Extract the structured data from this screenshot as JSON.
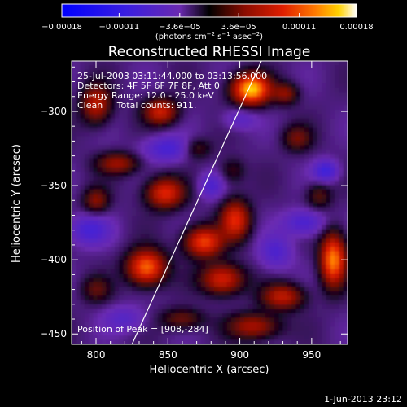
{
  "chart_data": {
    "type": "heatmap",
    "title": "Reconstructed RHESSI Image",
    "xlabel": "Heliocentric X (arcsec)",
    "ylabel": "Heliocentric Y (arcsec)",
    "xlim": [
      783,
      975
    ],
    "ylim": [
      -457,
      -266
    ],
    "x_ticks": [
      800,
      850,
      900,
      950
    ],
    "x_tick_labels": [
      "800",
      "850",
      "900",
      "950"
    ],
    "y_ticks": [
      -300,
      -350,
      -400,
      -450
    ],
    "y_tick_labels": [
      "−300",
      "−350",
      "−400",
      "−450"
    ],
    "colorbar": {
      "range": [
        -0.00018,
        0.00018
      ],
      "tick_values": [
        -0.00018,
        -0.00011,
        -3.6e-05,
        3.6e-05,
        0.00011,
        0.00018
      ],
      "tick_labels": [
        "−0.00018",
        "−0.00011",
        "−3.6e−05",
        "3.6e−05",
        "0.00011",
        "0.00018"
      ],
      "units_prefix": "(photons cm",
      "units_exp1": "−2",
      "units_mid": " s",
      "units_exp2": "−1",
      "units_mid2": " asec",
      "units_exp3": "−2",
      "units_suffix": ")"
    },
    "annotations": {
      "line1": "25-Jul-2003 03:11:44.000 to 03:13:56.000",
      "line2": "Detectors: 4F 5F 6F 7F 8F, Att 0",
      "line3": "Energy Range: 12.0 - 25.0 keV",
      "line4": "Clean     Total counts: 911.",
      "peak": "Position of Peak = [908,-284]"
    },
    "peak": [
      908,
      -284
    ],
    "limb_line": [
      [
        825,
        -457
      ],
      [
        915,
        -266
      ]
    ],
    "sources": [
      {
        "x": 908,
        "y": -285,
        "sx": 9,
        "sy": 7,
        "amp": 1.0
      },
      {
        "x": 845,
        "y": -300,
        "sx": 8,
        "sy": 6,
        "amp": 0.55
      },
      {
        "x": 800,
        "y": -295,
        "sx": 7,
        "sy": 9,
        "amp": 0.5
      },
      {
        "x": 932,
        "y": -288,
        "sx": 6,
        "sy": 5,
        "amp": 0.35
      },
      {
        "x": 940,
        "y": -318,
        "sx": 7,
        "sy": 6,
        "amp": 0.3
      },
      {
        "x": 815,
        "y": -335,
        "sx": 10,
        "sy": 5,
        "amp": 0.4
      },
      {
        "x": 848,
        "y": -355,
        "sx": 9,
        "sy": 7,
        "amp": 0.62
      },
      {
        "x": 897,
        "y": -373,
        "sx": 7,
        "sy": 9,
        "amp": 0.62
      },
      {
        "x": 875,
        "y": -388,
        "sx": 9,
        "sy": 7,
        "amp": 0.7
      },
      {
        "x": 835,
        "y": -405,
        "sx": 9,
        "sy": 8,
        "amp": 0.8
      },
      {
        "x": 888,
        "y": -413,
        "sx": 10,
        "sy": 7,
        "amp": 0.6
      },
      {
        "x": 965,
        "y": -400,
        "sx": 6,
        "sy": 12,
        "amp": 0.85
      },
      {
        "x": 930,
        "y": -425,
        "sx": 10,
        "sy": 6,
        "amp": 0.5
      },
      {
        "x": 910,
        "y": -445,
        "sx": 12,
        "sy": 6,
        "amp": 0.45
      },
      {
        "x": 800,
        "y": -360,
        "sx": 6,
        "sy": 6,
        "amp": 0.35
      },
      {
        "x": 955,
        "y": -357,
        "sx": 6,
        "sy": 6,
        "amp": 0.25
      },
      {
        "x": 870,
        "y": -325,
        "sx": 7,
        "sy": 5,
        "amp": 0.25
      },
      {
        "x": 860,
        "y": -440,
        "sx": 10,
        "sy": 5,
        "amp": 0.3
      },
      {
        "x": 895,
        "y": -340,
        "sx": 6,
        "sy": 6,
        "amp": 0.2
      },
      {
        "x": 800,
        "y": -420,
        "sx": 7,
        "sy": 6,
        "amp": 0.25
      },
      {
        "x": 945,
        "y": -375,
        "sx": 10,
        "sy": 6,
        "amp": -0.3
      },
      {
        "x": 960,
        "y": -340,
        "sx": 6,
        "sy": 5,
        "amp": -0.35
      },
      {
        "x": 850,
        "y": -325,
        "sx": 12,
        "sy": 6,
        "amp": -0.3
      },
      {
        "x": 795,
        "y": -380,
        "sx": 10,
        "sy": 7,
        "amp": -0.3
      },
      {
        "x": 925,
        "y": -395,
        "sx": 8,
        "sy": 8,
        "amp": -0.25
      },
      {
        "x": 880,
        "y": -350,
        "sx": 6,
        "sy": 6,
        "amp": -0.25
      },
      {
        "x": 900,
        "y": -305,
        "sx": 8,
        "sy": 5,
        "amp": -0.2
      },
      {
        "x": 820,
        "y": -440,
        "sx": 10,
        "sy": 6,
        "amp": -0.2
      }
    ]
  },
  "footer": {
    "date_stamp": "1-Jun-2013 23:12"
  }
}
